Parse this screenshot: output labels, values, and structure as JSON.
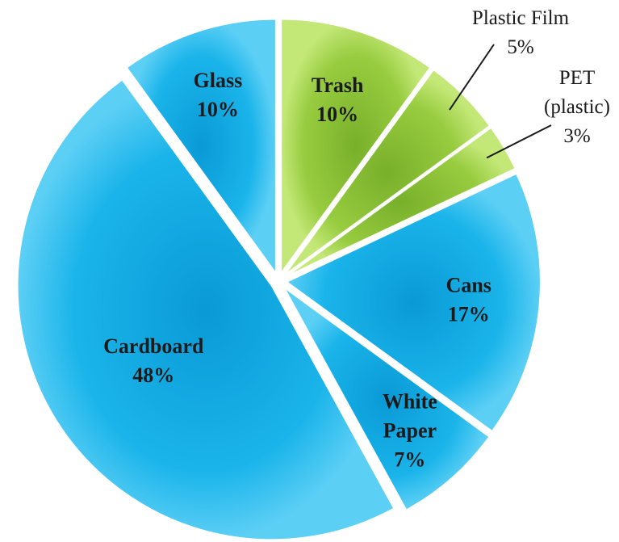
{
  "chart_data": {
    "type": "pie",
    "slices": [
      {
        "name": "Trash",
        "value": 10,
        "value_label": "10%",
        "color": "#96c93d",
        "label_position": "inside",
        "label_lines": [
          "Trash",
          "10%"
        ]
      },
      {
        "name": "Plastic Film",
        "value": 5,
        "value_label": "5%",
        "color": "#96c93d",
        "label_position": "callout",
        "label_lines": [
          "Plastic Film",
          "5%"
        ]
      },
      {
        "name": "PET (plastic)",
        "value": 3,
        "value_label": "3%",
        "color": "#96c93d",
        "label_position": "callout",
        "label_lines": [
          "PET",
          "(plastic)",
          "3%"
        ]
      },
      {
        "name": "Cans",
        "value": 17,
        "value_label": "17%",
        "color": "#1ab0e6",
        "label_position": "inside",
        "label_lines": [
          "Cans",
          "17%"
        ]
      },
      {
        "name": "White Paper",
        "value": 7,
        "value_label": "7%",
        "color": "#1ab0e6",
        "label_position": "inside",
        "label_lines": [
          "White",
          "Paper",
          "7%"
        ]
      },
      {
        "name": "Cardboard",
        "value": 48,
        "value_label": "48%",
        "color": "#1ab0e6",
        "label_position": "inside",
        "label_lines": [
          "Cardboard",
          "48%"
        ]
      },
      {
        "name": "Glass",
        "value": 10,
        "value_label": "10%",
        "color": "#1ab0e6",
        "label_position": "inside",
        "label_lines": [
          "Glass",
          "10%"
        ]
      }
    ],
    "start_angle_deg": 0,
    "direction": "clockwise",
    "exploded": true,
    "legend": "none"
  }
}
